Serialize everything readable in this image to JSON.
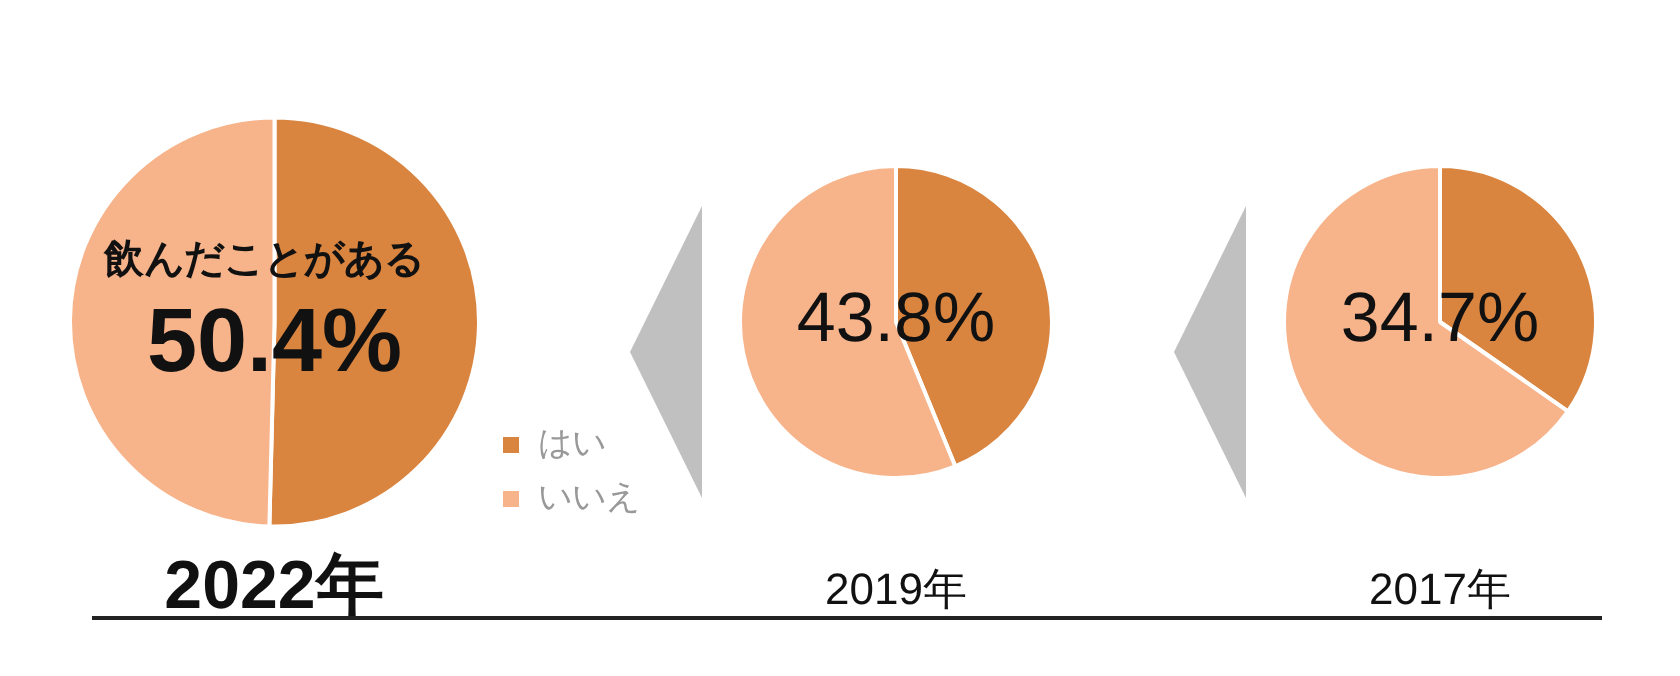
{
  "chart_data": [
    {
      "type": "pie",
      "title": "2022年",
      "annotations": [
        "飲んだことがある"
      ],
      "categories": [
        "はい",
        "いいえ"
      ],
      "values": [
        50.4,
        49.6
      ],
      "colors": [
        "#d9843f",
        "#f7b38a"
      ],
      "value_labels": [
        "50.4%",
        null
      ],
      "legend": "right"
    },
    {
      "type": "pie",
      "title": "2019年",
      "categories": [
        null,
        null
      ],
      "values": [
        43.8,
        56.2
      ],
      "colors": [
        "#d9843f",
        "#f7b38a"
      ],
      "value_labels": [
        "43.8%",
        null
      ]
    },
    {
      "type": "pie",
      "title": "2017年",
      "categories": [
        null,
        null
      ],
      "values": [
        34.7,
        65.3
      ],
      "colors": [
        "#d9843f",
        "#f7b38a"
      ],
      "value_labels": [
        "34.7%",
        null
      ]
    }
  ]
}
